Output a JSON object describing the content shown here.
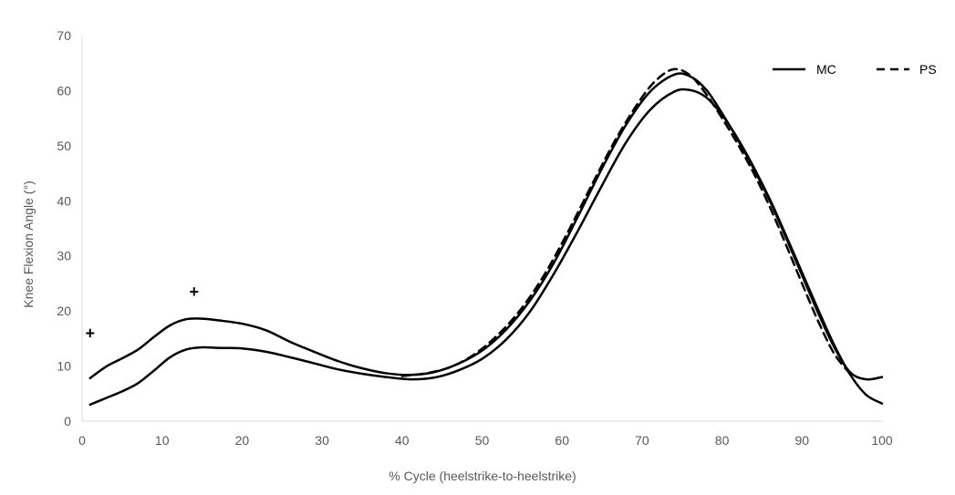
{
  "chart_data": {
    "type": "line",
    "title": "",
    "xlabel": "% Cycle (heelstrike-to-heelstrike)",
    "ylabel": "Knee Flexion Angle (°)",
    "xlim": [
      0,
      100
    ],
    "ylim": [
      0,
      70
    ],
    "x_ticks": [
      "0",
      "10",
      "20",
      "30",
      "40",
      "50",
      "60",
      "70",
      "80",
      "90",
      "100"
    ],
    "y_ticks": [
      "0",
      "10",
      "20",
      "30",
      "40",
      "50",
      "60",
      "70"
    ],
    "grid": false,
    "legend_position": "top-right",
    "legend": [
      {
        "name": "MC",
        "style": "solid"
      },
      {
        "name": "PS",
        "style": "dashed"
      }
    ],
    "annotations": [
      {
        "text": "+",
        "x": 1,
        "y": 16
      },
      {
        "text": "+",
        "x": 14,
        "y": 23.5
      }
    ],
    "series": [
      {
        "name": "MC",
        "line_style": "solid",
        "color": "#000000",
        "x": [
          1,
          3,
          5,
          7,
          9,
          11,
          13,
          15,
          17,
          20,
          23,
          26,
          29,
          32,
          35,
          38,
          41,
          44,
          47,
          50,
          53,
          56,
          59,
          62,
          65,
          68,
          71,
          74,
          76,
          78,
          80,
          82,
          84,
          86,
          88,
          90,
          92,
          94,
          96,
          98,
          100
        ],
        "values": [
          3,
          4.2,
          5.4,
          6.9,
          9.2,
          11.6,
          13,
          13.4,
          13.3,
          13.2,
          12.6,
          11.6,
          10.5,
          9.4,
          8.6,
          8,
          7.6,
          7.9,
          9.2,
          11.3,
          14.8,
          19.9,
          26.8,
          34.6,
          42.8,
          50.6,
          56.5,
          59.8,
          60.1,
          58.8,
          55.6,
          51.2,
          46,
          40.2,
          33.7,
          27,
          20.3,
          13.9,
          8.5,
          4.8,
          3.2
        ]
      },
      {
        "name": "MC",
        "line_style": "solid",
        "color": "#000000",
        "x": [
          1,
          3,
          5,
          7,
          9,
          11,
          13,
          15,
          17,
          20,
          23,
          26,
          29,
          32,
          35,
          38,
          41,
          44,
          47,
          50,
          53,
          56,
          59,
          62,
          65,
          68,
          71,
          74,
          76,
          78,
          80,
          82,
          84,
          86,
          88,
          90,
          92,
          94,
          96,
          98,
          100
        ],
        "values": [
          7.8,
          9.9,
          11.4,
          13,
          15.3,
          17.4,
          18.5,
          18.6,
          18.3,
          17.7,
          16.5,
          14.4,
          12.6,
          10.9,
          9.6,
          8.7,
          8.4,
          8.9,
          10.4,
          12.8,
          16.6,
          21.9,
          28.8,
          37.2,
          45.9,
          53.8,
          59.8,
          62.9,
          62.6,
          60.2,
          55.9,
          51,
          45.7,
          39.9,
          33.3,
          26.5,
          19.7,
          13.5,
          8.9,
          7.6,
          8
        ]
      },
      {
        "name": "PS",
        "line_style": "dashed",
        "color": "#000000",
        "x": [
          40,
          43,
          46,
          49,
          52,
          55,
          58,
          61,
          64,
          67,
          70,
          72,
          74,
          76,
          78,
          80,
          82,
          84,
          86,
          88,
          90,
          92,
          94,
          96
        ],
        "values": [
          8.2,
          8.7,
          9.8,
          12.1,
          15.7,
          20.6,
          27.1,
          35.1,
          43.7,
          51.9,
          58.8,
          62.2,
          63.9,
          62.8,
          59.4,
          55,
          50.2,
          44.9,
          38.8,
          32,
          25,
          18.2,
          12.3,
          8.6
        ]
      }
    ]
  }
}
